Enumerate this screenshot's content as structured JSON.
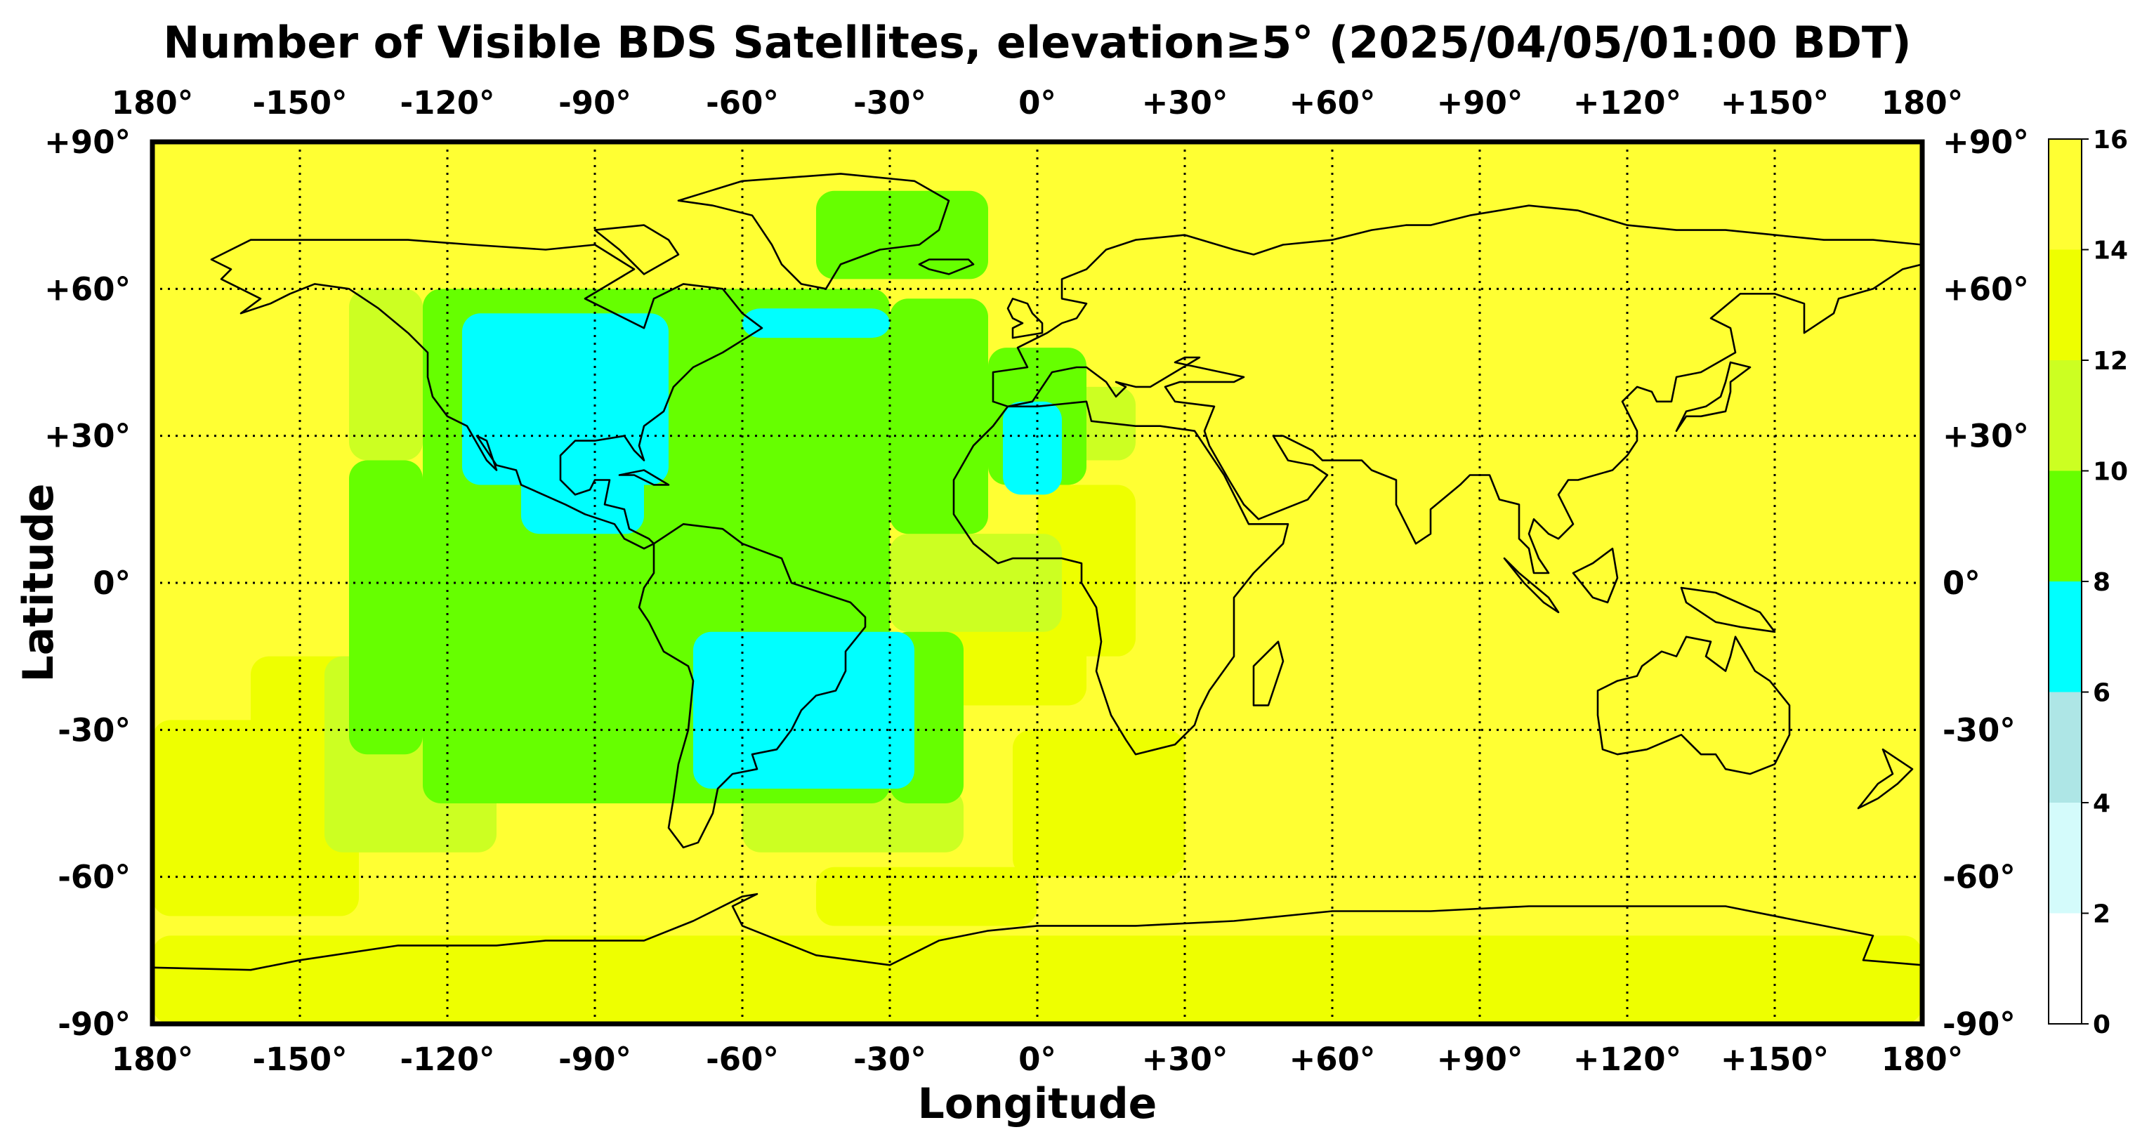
{
  "title": "Number of Visible BDS Satellites, elevation≥5° (2025/04/05/01:00 BDT)",
  "x_axis_label": "Longitude",
  "y_axis_label": "Latitude",
  "lon_ticks": [
    "180°",
    "-150°",
    "-120°",
    "-90°",
    "-60°",
    "-30°",
    "0°",
    "+30°",
    "+60°",
    "+90°",
    "+120°",
    "+150°",
    "180°"
  ],
  "lat_ticks": [
    "+90°",
    "+60°",
    "+30°",
    "0°",
    "-30°",
    "-60°",
    "-90°"
  ],
  "colorbar": {
    "tick_labels": [
      "0",
      "2",
      "4",
      "6",
      "8",
      "10",
      "12",
      "14",
      "16"
    ],
    "bins": [
      {
        "min": 0,
        "max": 2,
        "color": "#ffffff"
      },
      {
        "min": 2,
        "max": 4,
        "color": "#d4fbfb"
      },
      {
        "min": 4,
        "max": 6,
        "color": "#aee6e6"
      },
      {
        "min": 6,
        "max": 8,
        "color": "#00ffff"
      },
      {
        "min": 8,
        "max": 10,
        "color": "#66ff00"
      },
      {
        "min": 10,
        "max": 12,
        "color": "#ccff22"
      },
      {
        "min": 12,
        "max": 14,
        "color": "#eeff00"
      },
      {
        "min": 14,
        "max": 16,
        "color": "#ffff33"
      }
    ]
  },
  "chart_data": {
    "type": "heatmap",
    "title": "Number of Visible BDS Satellites, elevation≥5° (2025/04/05/01:00 BDT)",
    "xlabel": "Longitude",
    "ylabel": "Latitude",
    "xlim": [
      -180,
      180
    ],
    "ylim": [
      -90,
      90
    ],
    "grid": true,
    "value_range": [
      0,
      16
    ],
    "background_level": 15,
    "regions": [
      {
        "level": 13,
        "lon": [
          -180,
          180
        ],
        "lat": [
          -90,
          -72
        ]
      },
      {
        "level": 13,
        "lon": [
          -180,
          -138
        ],
        "lat": [
          -68,
          -28
        ]
      },
      {
        "level": 13,
        "lon": [
          -160,
          -120
        ],
        "lat": [
          -55,
          -15
        ]
      },
      {
        "level": 13,
        "lon": [
          -45,
          0
        ],
        "lat": [
          -70,
          -58
        ]
      },
      {
        "level": 13,
        "lon": [
          0,
          20
        ],
        "lat": [
          -15,
          20
        ]
      },
      {
        "level": 13,
        "lon": [
          -20,
          10
        ],
        "lat": [
          -25,
          10
        ]
      },
      {
        "level": 13,
        "lon": [
          -5,
          30
        ],
        "lat": [
          -60,
          -30
        ]
      },
      {
        "level": 11,
        "lon": [
          -145,
          -110
        ],
        "lat": [
          -55,
          -15
        ]
      },
      {
        "level": 11,
        "lon": [
          -60,
          -15
        ],
        "lat": [
          -55,
          -42
        ]
      },
      {
        "level": 11,
        "lon": [
          -30,
          5
        ],
        "lat": [
          -10,
          10
        ]
      },
      {
        "level": 11,
        "lon": [
          5,
          20
        ],
        "lat": [
          25,
          40
        ]
      },
      {
        "level": 11,
        "lon": [
          -140,
          -125
        ],
        "lat": [
          25,
          60
        ]
      },
      {
        "level": 9,
        "lon": [
          -125,
          -30
        ],
        "lat": [
          -45,
          60
        ]
      },
      {
        "level": 9,
        "lon": [
          -30,
          -10
        ],
        "lat": [
          10,
          58
        ]
      },
      {
        "level": 9,
        "lon": [
          -10,
          10
        ],
        "lat": [
          20,
          48
        ]
      },
      {
        "level": 9,
        "lon": [
          -30,
          -15
        ],
        "lat": [
          -45,
          -10
        ]
      },
      {
        "level": 9,
        "lon": [
          -140,
          -125
        ],
        "lat": [
          -35,
          25
        ]
      },
      {
        "level": 9,
        "lon": [
          -45,
          -10
        ],
        "lat": [
          62,
          80
        ]
      },
      {
        "level": 7,
        "lon": [
          -117,
          -75
        ],
        "lat": [
          20,
          55
        ]
      },
      {
        "level": 7,
        "lon": [
          -105,
          -80
        ],
        "lat": [
          10,
          25
        ]
      },
      {
        "level": 7,
        "lon": [
          -60,
          -30
        ],
        "lat": [
          50,
          56
        ]
      },
      {
        "level": 7,
        "lon": [
          -7,
          5
        ],
        "lat": [
          18,
          37
        ]
      },
      {
        "level": 7,
        "lon": [
          -70,
          -25
        ],
        "lat": [
          -42,
          -10
        ]
      }
    ]
  }
}
